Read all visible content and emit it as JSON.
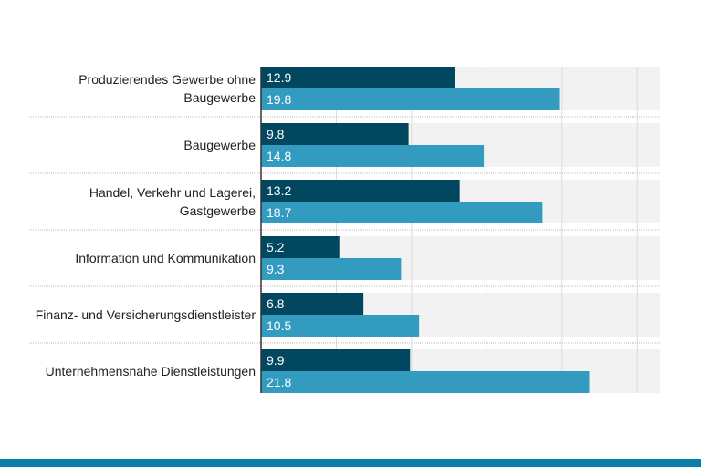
{
  "chart_data": {
    "type": "bar",
    "orientation": "horizontal",
    "categories": [
      [
        "Produzierendes Gewerbe ohne",
        "Baugewerbe"
      ],
      [
        "Baugewerbe"
      ],
      [
        "Handel, Verkehr und Lagerei,",
        "Gastgewerbe"
      ],
      [
        "Information und Kommunikation"
      ],
      [
        "Finanz- und Versicherungsdienstleister"
      ],
      [
        "Unternehmensnahe Dienstleistungen"
      ]
    ],
    "series": [
      {
        "values": [
          12.9,
          9.8,
          13.2,
          5.2,
          6.8,
          9.9
        ],
        "color": "#01475f"
      },
      {
        "values": [
          19.8,
          14.8,
          18.7,
          9.3,
          10.5,
          21.8
        ],
        "color": "#339bbf"
      }
    ],
    "value_labels": [
      [
        "12.9",
        "9.8",
        "13.2",
        "5.2",
        "6.8",
        "9.9"
      ],
      [
        "19.8",
        "14.8",
        "18.7",
        "9.3",
        "10.5",
        "21.8"
      ]
    ],
    "xlim": [
      0,
      26.5
    ],
    "grid_step": 5,
    "grid": true,
    "band_color": "#f2f2f2",
    "legend": "none"
  },
  "footer_color": "#0b7ea6"
}
